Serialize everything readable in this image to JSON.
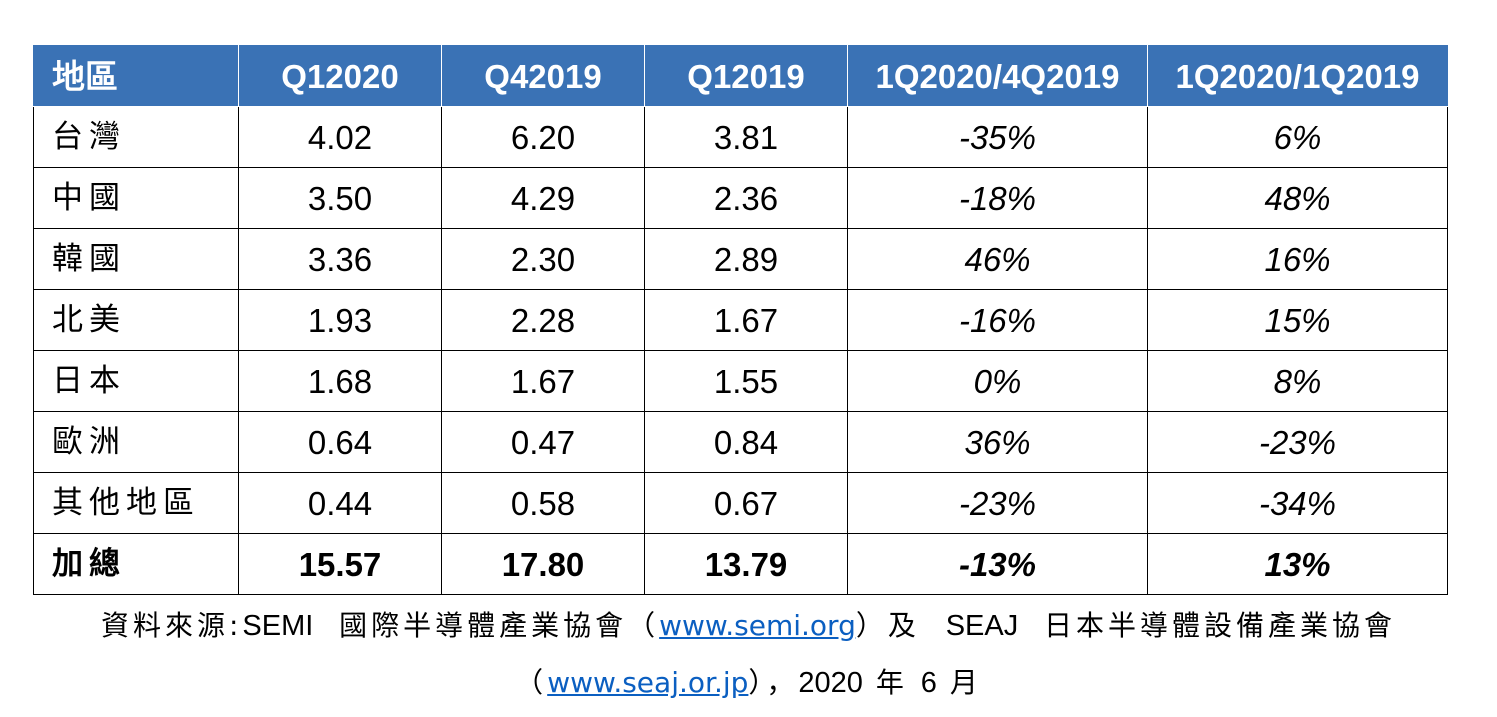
{
  "table": {
    "headers": [
      "地區",
      "Q12020",
      "Q42019",
      "Q12019",
      "1Q2020/4Q2019",
      "1Q2020/1Q2019"
    ],
    "rows": [
      {
        "region": "台灣",
        "q12020": "4.02",
        "q42019": "6.20",
        "q12019": "3.81",
        "qoq": "-35%",
        "yoy": "6%"
      },
      {
        "region": "中國",
        "q12020": "3.50",
        "q42019": "4.29",
        "q12019": "2.36",
        "qoq": "-18%",
        "yoy": "48%"
      },
      {
        "region": "韓國",
        "q12020": "3.36",
        "q42019": "2.30",
        "q12019": "2.89",
        "qoq": "46%",
        "yoy": "16%"
      },
      {
        "region": "北美",
        "q12020": "1.93",
        "q42019": "2.28",
        "q12019": "1.67",
        "qoq": "-16%",
        "yoy": "15%"
      },
      {
        "region": "日本",
        "q12020": "1.68",
        "q42019": "1.67",
        "q12019": "1.55",
        "qoq": "0%",
        "yoy": "8%"
      },
      {
        "region": "歐洲",
        "q12020": "0.64",
        "q42019": "0.47",
        "q12019": "0.84",
        "qoq": "36%",
        "yoy": "-23%"
      },
      {
        "region": "其他地區",
        "q12020": "0.44",
        "q42019": "0.58",
        "q12019": "0.67",
        "qoq": "-23%",
        "yoy": "-34%"
      }
    ],
    "total": {
      "region": "加總",
      "q12020": "15.57",
      "q42019": "17.80",
      "q12019": "13.79",
      "qoq": "-13%",
      "yoy": "13%"
    }
  },
  "source": {
    "prefix": "資料來源:",
    "semi_name": "SEMI",
    "semi_org": "國際半導體產業協會（",
    "semi_link": "www.semi.org",
    "semi_close": "）及",
    "seaj_name": "SEAJ",
    "seaj_org": "日本半導體設備產業協會",
    "open_paren": "（",
    "seaj_link": "www.seaj.or.jp",
    "close_comma": "），",
    "year": "2020",
    "year_unit": "年",
    "month": "6",
    "month_unit": "月"
  }
}
